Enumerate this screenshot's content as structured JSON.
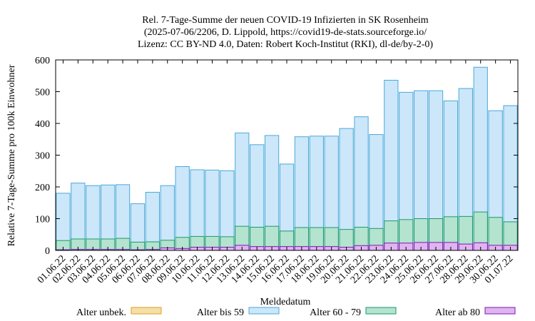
{
  "chart_data": {
    "type": "bar",
    "stacked": false,
    "title_lines": [
      "Rel. 7-Tage-Summe der neuen COVID-19 Infizierten in SK Rosenheim",
      "(2025-07-06/2206, D. Lippold, https://covid19-de-stats.sourceforge.io/",
      "Lizenz: CC BY-ND 4.0, Daten: Robert Koch-Institut (RKI), dl-de/by-2-0)"
    ],
    "xlabel": "Meldedatum",
    "ylabel": "Relative 7-Tage-Summe pro 100k Einwohner",
    "ylim": [
      0,
      600
    ],
    "yticks": [
      0,
      100,
      200,
      300,
      400,
      500,
      600
    ],
    "grid": false,
    "legend_position": "bottom",
    "categories": [
      "01.06.22",
      "02.06.22",
      "03.06.22",
      "04.06.22",
      "05.06.22",
      "06.06.22",
      "07.06.22",
      "08.06.22",
      "09.06.22",
      "10.06.22",
      "11.06.22",
      "12.06.22",
      "13.06.22",
      "14.06.22",
      "15.06.22",
      "16.06.22",
      "17.06.22",
      "18.06.22",
      "19.06.22",
      "20.06.22",
      "21.06.22",
      "22.06.22",
      "23.06.22",
      "24.06.22",
      "25.06.22",
      "26.06.22",
      "27.06.22",
      "28.06.22",
      "29.06.22",
      "30.06.22",
      "01.07.22"
    ],
    "series": [
      {
        "name": "Alter unbek.",
        "color": "#f5dfa8",
        "stroke": "#e0a020",
        "values": [
          0,
          0,
          0,
          0,
          0,
          0,
          0,
          0,
          0,
          0,
          0,
          0,
          0,
          0,
          0,
          0,
          0,
          0,
          0,
          0,
          0,
          0,
          0,
          0,
          0,
          0,
          0,
          0,
          0,
          0,
          0
        ]
      },
      {
        "name": "Alter bis 59",
        "color": "#cce7fa",
        "stroke": "#4aa8d8",
        "values": [
          180,
          212,
          204,
          206,
          207,
          147,
          183,
          204,
          264,
          254,
          253,
          251,
          370,
          333,
          362,
          272,
          358,
          360,
          360,
          384,
          421,
          365,
          536,
          498,
          503,
          503,
          471,
          510,
          577,
          440,
          456
        ]
      },
      {
        "name": "Alter 60 - 79",
        "color": "#b4e3d0",
        "stroke": "#1a9a6a",
        "values": [
          31,
          36,
          36,
          36,
          38,
          26,
          27,
          32,
          41,
          44,
          44,
          43,
          76,
          73,
          76,
          61,
          72,
          72,
          72,
          66,
          73,
          69,
          93,
          97,
          100,
          100,
          106,
          107,
          121,
          104,
          90
        ]
      },
      {
        "name": "Alter ab 80",
        "color": "#e0b4f0",
        "stroke": "#7a1ab0",
        "values": [
          2,
          3,
          3,
          3,
          3,
          2,
          3,
          8,
          6,
          10,
          10,
          10,
          16,
          12,
          12,
          12,
          12,
          12,
          12,
          10,
          15,
          16,
          23,
          23,
          25,
          25,
          25,
          20,
          24,
          16,
          16
        ]
      }
    ]
  }
}
